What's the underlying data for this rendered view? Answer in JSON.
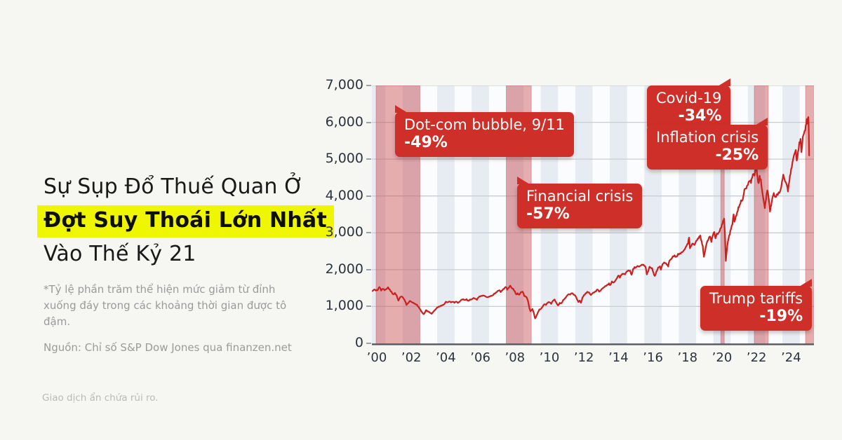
{
  "page": {
    "background": "#f6f6f3",
    "disclaimer": "Giao dịch ẩn chứa rủi ro."
  },
  "headline": {
    "line1": "Sự Sụp Đổ Thuế Quan Ở",
    "line2_highlight": "Đợt Suy Thoái Lớn Nhất",
    "line3": "Vào Thế Kỷ 21",
    "highlight_color": "#eef600"
  },
  "footnote": {
    "text": "*Tỷ lệ phần trăm thể hiện mức giảm từ đỉnh xuống đáy trong các khoảng thời gian được tô đậm.",
    "source": "Nguồn: Chỉ số S&P Dow Jones qua finanzen.net"
  },
  "chart_data": {
    "type": "line",
    "series_name": "S&P Dow Jones Index",
    "line_color": "#c8211f",
    "band_color": "rgba(199,54,58,0.40)",
    "band_edge_color": "rgba(190,60,60,0.35)",
    "stripe_color": "#e7ecf3",
    "plot_bg": "#fbfcfd",
    "grid_color": "#c9cdd3",
    "axis_line_color": "#54575d",
    "y_axis": {
      "range": [
        0,
        7000
      ],
      "ticks": [
        {
          "label": "7,000",
          "value": 7000
        },
        {
          "label": "6,000",
          "value": 6000
        },
        {
          "label": "5,000",
          "value": 5000
        },
        {
          "label": "4,000",
          "value": 4000
        },
        {
          "label": "3,000",
          "value": 3000
        },
        {
          "label": "2,000",
          "value": 2000
        },
        {
          "label": "1,000",
          "value": 1000
        },
        {
          "label": "0",
          "value": 0
        }
      ]
    },
    "x_axis": {
      "ticks": [
        {
          "label": "’00",
          "year": 2000
        },
        {
          "label": "’02",
          "year": 2002
        },
        {
          "label": "’04",
          "year": 2004
        },
        {
          "label": "’06",
          "year": 2006
        },
        {
          "label": "’08",
          "year": 2008
        },
        {
          "label": "’10",
          "year": 2010
        },
        {
          "label": "’12",
          "year": 2012
        },
        {
          "label": "’14",
          "year": 2014
        },
        {
          "label": "’16",
          "year": 2016
        },
        {
          "label": "’18",
          "year": 2018
        },
        {
          "label": "’20",
          "year": 2020
        },
        {
          "label": "’22",
          "year": 2022
        },
        {
          "label": "’24",
          "year": 2024
        }
      ]
    },
    "shaded_bands": [
      {
        "name": "dotcom-crash",
        "from": 1999.96,
        "to": 2002.5
      },
      {
        "name": "financial-crisis",
        "from": 2007.5,
        "to": 2008.95
      },
      {
        "name": "covid-crash",
        "from": 2019.93,
        "to": 2020.13
      },
      {
        "name": "inflation-bear",
        "from": 2021.87,
        "to": 2022.68
      },
      {
        "name": "tariff-crash",
        "from": 2024.84,
        "to": 2025.33
      }
    ],
    "annotations": [
      {
        "id": "dotcom",
        "label": "Dot-com bubble, 9/11",
        "value": "-49%"
      },
      {
        "id": "financial",
        "label": "Financial crisis",
        "value": "-57%"
      },
      {
        "id": "covid",
        "label": "Covid-19",
        "value": "-34%"
      },
      {
        "id": "inflation",
        "label": "Inflation crisis",
        "value": "-25%"
      },
      {
        "id": "trump",
        "label": "Trump tariffs",
        "value": "-19%"
      }
    ],
    "points": [
      [
        1999.75,
        1420
      ],
      [
        1999.85,
        1460
      ],
      [
        1999.95,
        1430
      ],
      [
        2000.05,
        1440
      ],
      [
        2000.15,
        1527
      ],
      [
        2000.25,
        1430
      ],
      [
        2000.35,
        1480
      ],
      [
        2000.45,
        1440
      ],
      [
        2000.55,
        1470
      ],
      [
        2000.65,
        1520
      ],
      [
        2000.75,
        1460
      ],
      [
        2000.85,
        1400
      ],
      [
        2000.95,
        1330
      ],
      [
        2001.05,
        1370
      ],
      [
        2001.15,
        1300
      ],
      [
        2001.25,
        1160
      ],
      [
        2001.35,
        1250
      ],
      [
        2001.45,
        1270
      ],
      [
        2001.55,
        1215
      ],
      [
        2001.65,
        1130
      ],
      [
        2001.72,
        1040
      ],
      [
        2001.82,
        1090
      ],
      [
        2001.92,
        1150
      ],
      [
        2002.02,
        1120
      ],
      [
        2002.12,
        1100
      ],
      [
        2002.22,
        1075
      ],
      [
        2002.32,
        1050
      ],
      [
        2002.42,
        990
      ],
      [
        2002.52,
        920
      ],
      [
        2002.62,
        840
      ],
      [
        2002.72,
        790
      ],
      [
        2002.78,
        830
      ],
      [
        2002.85,
        900
      ],
      [
        2002.92,
        870
      ],
      [
        2003.0,
        855
      ],
      [
        2003.08,
        830
      ],
      [
        2003.18,
        800
      ],
      [
        2003.28,
        860
      ],
      [
        2003.4,
        920
      ],
      [
        2003.5,
        975
      ],
      [
        2003.6,
        1000
      ],
      [
        2003.7,
        1020
      ],
      [
        2003.8,
        1040
      ],
      [
        2003.9,
        1060
      ],
      [
        2004.0,
        1130
      ],
      [
        2004.1,
        1110
      ],
      [
        2004.2,
        1135
      ],
      [
        2004.3,
        1110
      ],
      [
        2004.4,
        1125
      ],
      [
        2004.5,
        1100
      ],
      [
        2004.6,
        1130
      ],
      [
        2004.7,
        1095
      ],
      [
        2004.8,
        1130
      ],
      [
        2004.9,
        1185
      ],
      [
        2005.0,
        1200
      ],
      [
        2005.1,
        1180
      ],
      [
        2005.2,
        1200
      ],
      [
        2005.3,
        1155
      ],
      [
        2005.4,
        1190
      ],
      [
        2005.5,
        1195
      ],
      [
        2005.6,
        1230
      ],
      [
        2005.7,
        1210
      ],
      [
        2005.8,
        1180
      ],
      [
        2005.9,
        1250
      ],
      [
        2006.0,
        1270
      ],
      [
        2006.1,
        1285
      ],
      [
        2006.2,
        1295
      ],
      [
        2006.3,
        1270
      ],
      [
        2006.4,
        1250
      ],
      [
        2006.5,
        1270
      ],
      [
        2006.6,
        1290
      ],
      [
        2006.7,
        1305
      ],
      [
        2006.8,
        1350
      ],
      [
        2006.9,
        1380
      ],
      [
        2007.0,
        1420
      ],
      [
        2007.1,
        1440
      ],
      [
        2007.18,
        1390
      ],
      [
        2007.28,
        1440
      ],
      [
        2007.38,
        1480
      ],
      [
        2007.48,
        1530
      ],
      [
        2007.56,
        1455
      ],
      [
        2007.64,
        1500
      ],
      [
        2007.73,
        1565
      ],
      [
        2007.82,
        1500
      ],
      [
        2007.9,
        1480
      ],
      [
        2008.0,
        1410
      ],
      [
        2008.08,
        1330
      ],
      [
        2008.16,
        1360
      ],
      [
        2008.25,
        1320
      ],
      [
        2008.35,
        1390
      ],
      [
        2008.45,
        1400
      ],
      [
        2008.55,
        1280
      ],
      [
        2008.65,
        1260
      ],
      [
        2008.72,
        1200
      ],
      [
        2008.78,
        1100
      ],
      [
        2008.84,
        950
      ],
      [
        2008.9,
        870
      ],
      [
        2008.96,
        900
      ],
      [
        2009.02,
        930
      ],
      [
        2009.1,
        820
      ],
      [
        2009.17,
        677
      ],
      [
        2009.25,
        750
      ],
      [
        2009.33,
        835
      ],
      [
        2009.42,
        920
      ],
      [
        2009.5,
        930
      ],
      [
        2009.6,
        990
      ],
      [
        2009.7,
        1060
      ],
      [
        2009.8,
        1040
      ],
      [
        2009.9,
        1100
      ],
      [
        2010.0,
        1115
      ],
      [
        2010.1,
        1070
      ],
      [
        2010.2,
        1150
      ],
      [
        2010.3,
        1190
      ],
      [
        2010.4,
        1100
      ],
      [
        2010.5,
        1030
      ],
      [
        2010.6,
        1100
      ],
      [
        2010.7,
        1090
      ],
      [
        2010.8,
        1180
      ],
      [
        2010.9,
        1220
      ],
      [
        2011.0,
        1280
      ],
      [
        2011.1,
        1330
      ],
      [
        2011.2,
        1320
      ],
      [
        2011.3,
        1360
      ],
      [
        2011.4,
        1320
      ],
      [
        2011.5,
        1290
      ],
      [
        2011.6,
        1190
      ],
      [
        2011.68,
        1120
      ],
      [
        2011.75,
        1160
      ],
      [
        2011.83,
        1100
      ],
      [
        2011.92,
        1250
      ],
      [
        2012.0,
        1310
      ],
      [
        2012.1,
        1360
      ],
      [
        2012.2,
        1400
      ],
      [
        2012.3,
        1380
      ],
      [
        2012.4,
        1310
      ],
      [
        2012.5,
        1360
      ],
      [
        2012.6,
        1380
      ],
      [
        2012.7,
        1410
      ],
      [
        2012.78,
        1460
      ],
      [
        2012.88,
        1400
      ],
      [
        2012.95,
        1420
      ],
      [
        2013.05,
        1480
      ],
      [
        2013.15,
        1520
      ],
      [
        2013.25,
        1560
      ],
      [
        2013.35,
        1590
      ],
      [
        2013.45,
        1630
      ],
      [
        2013.52,
        1580
      ],
      [
        2013.62,
        1680
      ],
      [
        2013.72,
        1650
      ],
      [
        2013.82,
        1700
      ],
      [
        2013.92,
        1770
      ],
      [
        2014.0,
        1840
      ],
      [
        2014.08,
        1780
      ],
      [
        2014.18,
        1860
      ],
      [
        2014.28,
        1880
      ],
      [
        2014.38,
        1870
      ],
      [
        2014.48,
        1950
      ],
      [
        2014.58,
        1980
      ],
      [
        2014.68,
        1970
      ],
      [
        2014.76,
        1862
      ],
      [
        2014.85,
        2020
      ],
      [
        2014.93,
        2070
      ],
      [
        2015.0,
        2060
      ],
      [
        2015.1,
        2100
      ],
      [
        2015.2,
        2080
      ],
      [
        2015.3,
        2110
      ],
      [
        2015.4,
        2130
      ],
      [
        2015.5,
        2100
      ],
      [
        2015.58,
        2050
      ],
      [
        2015.64,
        1870
      ],
      [
        2015.72,
        1950
      ],
      [
        2015.8,
        2080
      ],
      [
        2015.88,
        2050
      ],
      [
        2015.95,
        2040
      ],
      [
        2016.03,
        1920
      ],
      [
        2016.1,
        1830
      ],
      [
        2016.2,
        1950
      ],
      [
        2016.3,
        2060
      ],
      [
        2016.4,
        2090
      ],
      [
        2016.46,
        2000
      ],
      [
        2016.52,
        2100
      ],
      [
        2016.6,
        2170
      ],
      [
        2016.7,
        2175
      ],
      [
        2016.8,
        2130
      ],
      [
        2016.88,
        2085
      ],
      [
        2016.95,
        2240
      ],
      [
        2017.05,
        2280
      ],
      [
        2017.15,
        2360
      ],
      [
        2017.25,
        2390
      ],
      [
        2017.35,
        2350
      ],
      [
        2017.45,
        2430
      ],
      [
        2017.55,
        2440
      ],
      [
        2017.65,
        2470
      ],
      [
        2017.75,
        2500
      ],
      [
        2017.85,
        2560
      ],
      [
        2017.95,
        2650
      ],
      [
        2018.03,
        2700
      ],
      [
        2018.09,
        2870
      ],
      [
        2018.14,
        2580
      ],
      [
        2018.22,
        2640
      ],
      [
        2018.3,
        2710
      ],
      [
        2018.4,
        2670
      ],
      [
        2018.5,
        2780
      ],
      [
        2018.6,
        2850
      ],
      [
        2018.68,
        2900
      ],
      [
        2018.74,
        2930
      ],
      [
        2018.82,
        2760
      ],
      [
        2018.88,
        2650
      ],
      [
        2018.95,
        2350
      ],
      [
        2019.02,
        2500
      ],
      [
        2019.1,
        2700
      ],
      [
        2019.2,
        2800
      ],
      [
        2019.3,
        2900
      ],
      [
        2019.38,
        2750
      ],
      [
        2019.48,
        2950
      ],
      [
        2019.55,
        3020
      ],
      [
        2019.62,
        2850
      ],
      [
        2019.7,
        2980
      ],
      [
        2019.8,
        3000
      ],
      [
        2019.9,
        3120
      ],
      [
        2020.0,
        3230
      ],
      [
        2020.06,
        3330
      ],
      [
        2020.12,
        3386
      ],
      [
        2020.17,
        2950
      ],
      [
        2020.22,
        2237
      ],
      [
        2020.3,
        2630
      ],
      [
        2020.38,
        2850
      ],
      [
        2020.45,
        2950
      ],
      [
        2020.52,
        3100
      ],
      [
        2020.6,
        3230
      ],
      [
        2020.67,
        3500
      ],
      [
        2020.72,
        3300
      ],
      [
        2020.8,
        3450
      ],
      [
        2020.87,
        3550
      ],
      [
        2020.95,
        3700
      ],
      [
        2021.02,
        3760
      ],
      [
        2021.1,
        3880
      ],
      [
        2021.2,
        3900
      ],
      [
        2021.3,
        4180
      ],
      [
        2021.4,
        4200
      ],
      [
        2021.5,
        4300
      ],
      [
        2021.6,
        4400
      ],
      [
        2021.68,
        4350
      ],
      [
        2021.75,
        4500
      ],
      [
        2021.82,
        4600
      ],
      [
        2021.88,
        4550
      ],
      [
        2021.95,
        4780
      ],
      [
        2022.0,
        4796
      ],
      [
        2022.06,
        4500
      ],
      [
        2022.12,
        4350
      ],
      [
        2022.18,
        4550
      ],
      [
        2022.25,
        4450
      ],
      [
        2022.32,
        4150
      ],
      [
        2022.4,
        3900
      ],
      [
        2022.48,
        3670
      ],
      [
        2022.55,
        3900
      ],
      [
        2022.62,
        4150
      ],
      [
        2022.7,
        3950
      ],
      [
        2022.78,
        3577
      ],
      [
        2022.85,
        3750
      ],
      [
        2022.92,
        3950
      ],
      [
        2023.0,
        4080
      ],
      [
        2023.08,
        3970
      ],
      [
        2023.18,
        4050
      ],
      [
        2023.28,
        4100
      ],
      [
        2023.38,
        4150
      ],
      [
        2023.48,
        4400
      ],
      [
        2023.55,
        4580
      ],
      [
        2023.65,
        4400
      ],
      [
        2023.75,
        4300
      ],
      [
        2023.82,
        4120
      ],
      [
        2023.9,
        4400
      ],
      [
        2023.97,
        4600
      ],
      [
        2024.04,
        4770
      ],
      [
        2024.12,
        5000
      ],
      [
        2024.2,
        5150
      ],
      [
        2024.27,
        5250
      ],
      [
        2024.33,
        4960
      ],
      [
        2024.4,
        5200
      ],
      [
        2024.48,
        5460
      ],
      [
        2024.55,
        5550
      ],
      [
        2024.6,
        5190
      ],
      [
        2024.68,
        5600
      ],
      [
        2024.75,
        5700
      ],
      [
        2024.82,
        5780
      ],
      [
        2024.88,
        5950
      ],
      [
        2024.93,
        6090
      ],
      [
        2024.97,
        5960
      ],
      [
        2025.0,
        6144
      ],
      [
        2025.03,
        5700
      ],
      [
        2025.05,
        5100
      ]
    ]
  }
}
